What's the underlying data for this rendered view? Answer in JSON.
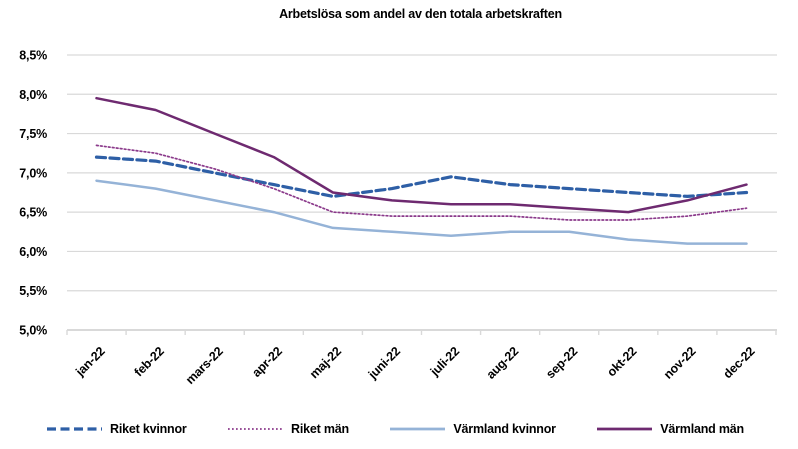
{
  "chart_data": {
    "type": "line",
    "title": "Arbetslösa som andel av den totala arbetskraften",
    "categories": [
      "jan-22",
      "feb-22",
      "mars-22",
      "apr-22",
      "maj-22",
      "juni-22",
      "juli-22",
      "aug-22",
      "sep-22",
      "okt-22",
      "nov-22",
      "dec-22"
    ],
    "series": [
      {
        "name": "Riket kvinnor",
        "color": "#2E5FA6",
        "line_style": "dashed",
        "values": [
          7.2,
          7.15,
          7.0,
          6.85,
          6.7,
          6.8,
          6.95,
          6.85,
          6.8,
          6.75,
          6.7,
          6.75
        ]
      },
      {
        "name": "Riket män",
        "color": "#8B3A8B",
        "line_style": "dotted",
        "values": [
          7.35,
          7.25,
          7.05,
          6.8,
          6.5,
          6.45,
          6.45,
          6.45,
          6.4,
          6.4,
          6.45,
          6.55
        ]
      },
      {
        "name": "Värmland kvinnor",
        "color": "#95B3D7",
        "line_style": "solid",
        "values": [
          6.9,
          6.8,
          6.65,
          6.5,
          6.3,
          6.25,
          6.2,
          6.25,
          6.25,
          6.15,
          6.1,
          6.1
        ]
      },
      {
        "name": "Värmland män",
        "color": "#6E2A70",
        "line_style": "solid",
        "values": [
          7.95,
          7.8,
          7.5,
          7.2,
          6.75,
          6.65,
          6.6,
          6.6,
          6.55,
          6.5,
          6.65,
          6.85
        ]
      }
    ],
    "ylim": [
      5.0,
      8.5
    ],
    "ytick_step": 0.5,
    "ytick_labels": [
      "5,0%",
      "5,5%",
      "6,0%",
      "6,5%",
      "7,0%",
      "7,5%",
      "8,0%",
      "8,5%"
    ],
    "xlabel": "",
    "ylabel": "",
    "grid": "horizontal",
    "legend_position": "bottom",
    "gridline_color": "#D9D9D9",
    "axis_color": "#D9D9D9",
    "text_color": "#000000",
    "background": "#FFFFFF"
  }
}
